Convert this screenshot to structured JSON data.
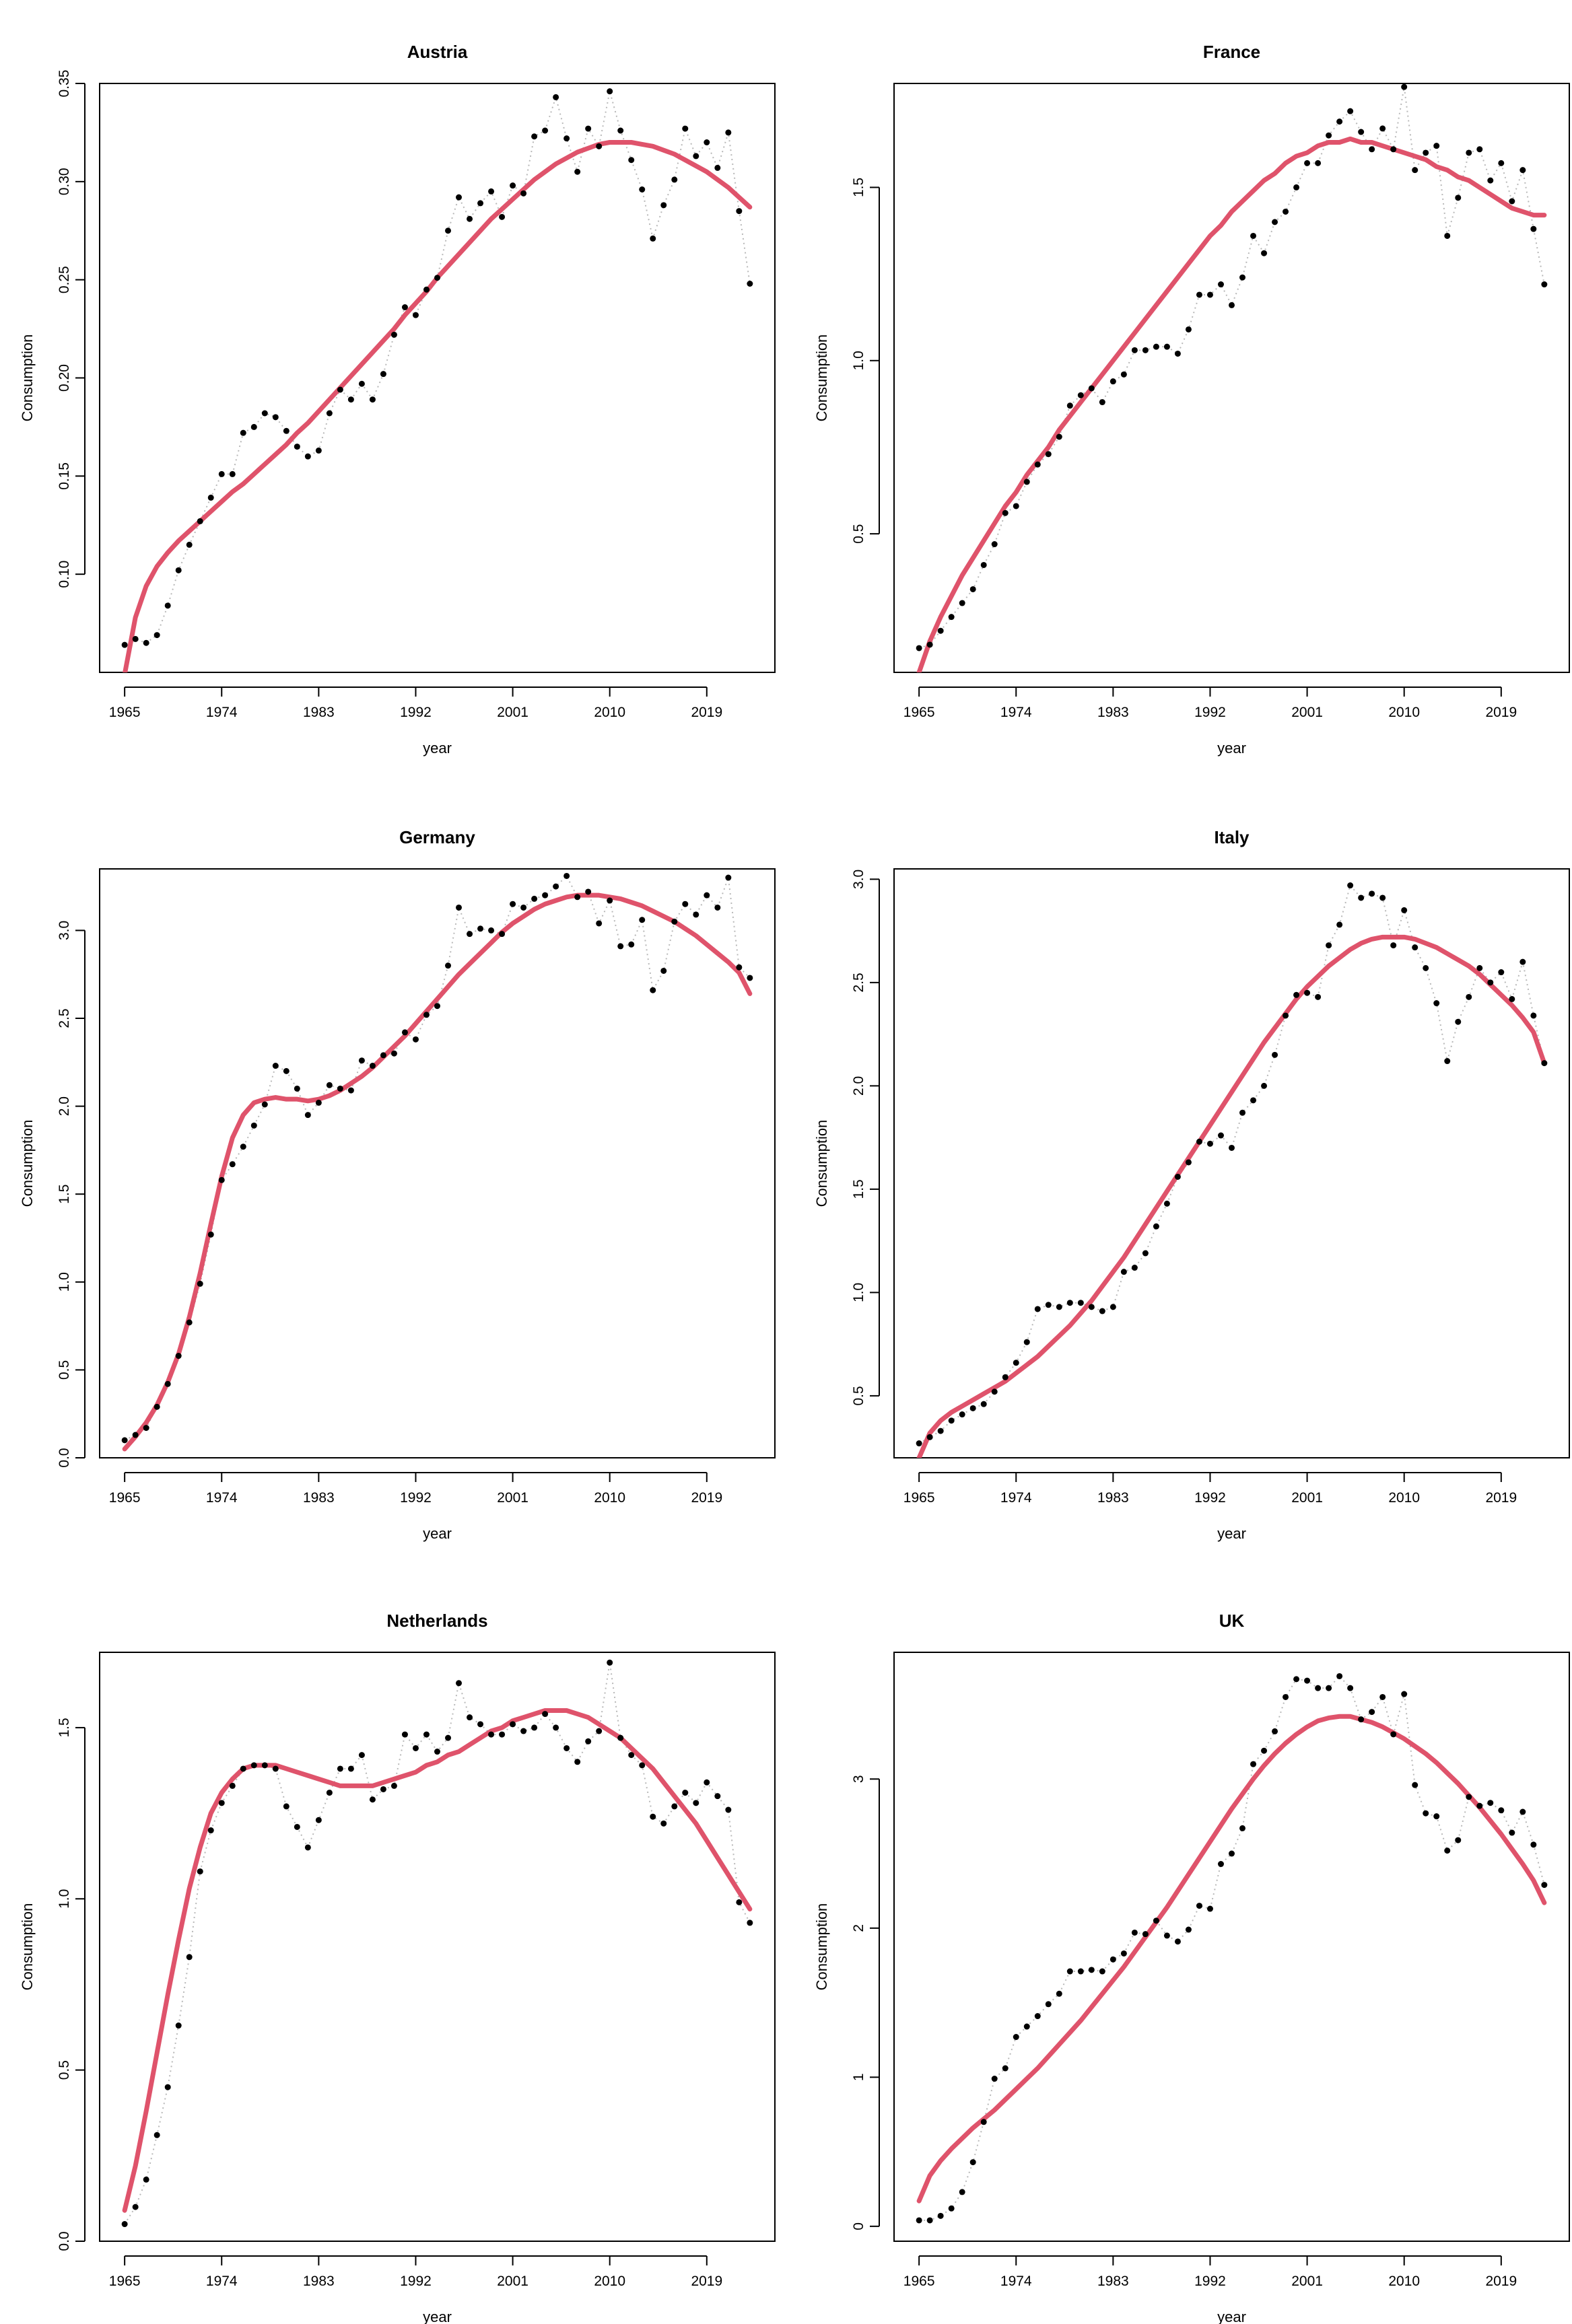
{
  "figure": {
    "colors": {
      "points": "#000000",
      "observed_line": "#b8b8b8",
      "trend": "#DF536B",
      "frame": "#000000"
    }
  },
  "chart_data": [
    {
      "type": "scatter",
      "title": "Austria",
      "xlabel": "year",
      "ylabel": "Consumption",
      "xlim": [
        1965,
        2023
      ],
      "ylim": [
        0.05,
        0.35
      ],
      "x_ticks": [
        1965,
        1974,
        1983,
        1992,
        2001,
        2010,
        2019
      ],
      "y_ticks": [
        0.1,
        0.15,
        0.2,
        0.25,
        0.3,
        0.35
      ],
      "y_tick_labels": [
        "0.10",
        "0.15",
        "0.20",
        "0.25",
        "0.30",
        "0.35"
      ],
      "series": [
        {
          "name": "observed",
          "x_start": 1965,
          "values": [
            0.064,
            0.067,
            0.065,
            0.069,
            0.084,
            0.102,
            0.115,
            0.127,
            0.139,
            0.151,
            0.151,
            0.172,
            0.175,
            0.182,
            0.18,
            0.173,
            0.165,
            0.16,
            0.163,
            0.182,
            0.194,
            0.189,
            0.197,
            0.189,
            0.202,
            0.222,
            0.236,
            0.232,
            0.245,
            0.251,
            0.275,
            0.292,
            0.281,
            0.289,
            0.295,
            0.282,
            0.298,
            0.294,
            0.323,
            0.326,
            0.343,
            0.322,
            0.305,
            0.327,
            0.318,
            0.346,
            0.326,
            0.311,
            0.296,
            0.271,
            0.288,
            0.301,
            0.327,
            0.313,
            0.32,
            0.307,
            0.325,
            0.285,
            0.248
          ]
        },
        {
          "name": "trend",
          "x_start": 1965,
          "values": [
            0.049,
            0.078,
            0.094,
            0.104,
            0.111,
            0.117,
            0.122,
            0.127,
            0.132,
            0.137,
            0.142,
            0.146,
            0.151,
            0.156,
            0.161,
            0.166,
            0.172,
            0.177,
            0.183,
            0.189,
            0.195,
            0.201,
            0.207,
            0.213,
            0.219,
            0.225,
            0.232,
            0.238,
            0.244,
            0.251,
            0.257,
            0.263,
            0.269,
            0.275,
            0.281,
            0.286,
            0.291,
            0.296,
            0.301,
            0.305,
            0.309,
            0.312,
            0.315,
            0.317,
            0.319,
            0.32,
            0.32,
            0.32,
            0.319,
            0.318,
            0.316,
            0.314,
            0.311,
            0.308,
            0.305,
            0.301,
            0.297,
            0.292,
            0.287
          ]
        }
      ]
    },
    {
      "type": "scatter",
      "title": "France",
      "xlabel": "year",
      "ylabel": "Consumption",
      "xlim": [
        1965,
        2023
      ],
      "ylim": [
        0.1,
        1.8
      ],
      "x_ticks": [
        1965,
        1974,
        1983,
        1992,
        2001,
        2010,
        2019
      ],
      "y_ticks": [
        0.5,
        1.0,
        1.5
      ],
      "y_tick_labels": [
        "0.5",
        "1.0",
        "1.5"
      ],
      "series": [
        {
          "name": "observed",
          "x_start": 1965,
          "values": [
            0.17,
            0.18,
            0.22,
            0.26,
            0.3,
            0.34,
            0.41,
            0.47,
            0.56,
            0.58,
            0.65,
            0.7,
            0.73,
            0.78,
            0.87,
            0.9,
            0.92,
            0.88,
            0.94,
            0.96,
            1.03,
            1.03,
            1.04,
            1.04,
            1.02,
            1.09,
            1.19,
            1.19,
            1.22,
            1.16,
            1.24,
            1.36,
            1.31,
            1.4,
            1.43,
            1.5,
            1.57,
            1.57,
            1.65,
            1.69,
            1.72,
            1.66,
            1.61,
            1.67,
            1.61,
            1.79,
            1.55,
            1.6,
            1.62,
            1.36,
            1.47,
            1.6,
            1.61,
            1.52,
            1.57,
            1.46,
            1.55,
            1.38,
            1.22
          ]
        },
        {
          "name": "trend",
          "x_start": 1965,
          "values": [
            0.1,
            0.19,
            0.26,
            0.32,
            0.38,
            0.43,
            0.48,
            0.53,
            0.58,
            0.62,
            0.67,
            0.71,
            0.75,
            0.8,
            0.84,
            0.88,
            0.92,
            0.96,
            1.0,
            1.04,
            1.08,
            1.12,
            1.16,
            1.2,
            1.24,
            1.28,
            1.32,
            1.36,
            1.39,
            1.43,
            1.46,
            1.49,
            1.52,
            1.54,
            1.57,
            1.59,
            1.6,
            1.62,
            1.63,
            1.63,
            1.64,
            1.63,
            1.63,
            1.62,
            1.61,
            1.6,
            1.59,
            1.58,
            1.56,
            1.55,
            1.53,
            1.52,
            1.5,
            1.48,
            1.46,
            1.44,
            1.43,
            1.42,
            1.42
          ]
        }
      ]
    },
    {
      "type": "scatter",
      "title": "Germany",
      "xlabel": "year",
      "ylabel": "Consumption",
      "xlim": [
        1965,
        2023
      ],
      "ylim": [
        0,
        3.35
      ],
      "x_ticks": [
        1965,
        1974,
        1983,
        1992,
        2001,
        2010,
        2019
      ],
      "y_ticks": [
        0.0,
        0.5,
        1.0,
        1.5,
        2.0,
        2.5,
        3.0
      ],
      "y_tick_labels": [
        "0.0",
        "0.5",
        "1.0",
        "1.5",
        "2.0",
        "2.5",
        "3.0"
      ],
      "series": [
        {
          "name": "observed",
          "x_start": 1965,
          "values": [
            0.1,
            0.13,
            0.17,
            0.29,
            0.42,
            0.58,
            0.77,
            0.99,
            1.27,
            1.58,
            1.67,
            1.77,
            1.89,
            2.01,
            2.23,
            2.2,
            2.1,
            1.95,
            2.02,
            2.12,
            2.1,
            2.09,
            2.26,
            2.23,
            2.29,
            2.3,
            2.42,
            2.38,
            2.52,
            2.57,
            2.8,
            3.13,
            2.98,
            3.01,
            3.0,
            2.98,
            3.15,
            3.13,
            3.18,
            3.2,
            3.25,
            3.31,
            3.19,
            3.22,
            3.04,
            3.17,
            2.91,
            2.92,
            3.06,
            2.66,
            2.77,
            3.05,
            3.15,
            3.09,
            3.2,
            3.13,
            3.3,
            2.79,
            2.73
          ]
        },
        {
          "name": "trend",
          "x_start": 1965,
          "values": [
            0.05,
            0.12,
            0.2,
            0.3,
            0.43,
            0.59,
            0.8,
            1.05,
            1.33,
            1.6,
            1.82,
            1.95,
            2.02,
            2.04,
            2.05,
            2.04,
            2.04,
            2.03,
            2.04,
            2.06,
            2.09,
            2.13,
            2.17,
            2.22,
            2.28,
            2.34,
            2.4,
            2.47,
            2.54,
            2.61,
            2.68,
            2.75,
            2.81,
            2.87,
            2.93,
            2.99,
            3.04,
            3.08,
            3.12,
            3.15,
            3.17,
            3.19,
            3.2,
            3.2,
            3.2,
            3.19,
            3.18,
            3.16,
            3.14,
            3.11,
            3.08,
            3.05,
            3.01,
            2.97,
            2.92,
            2.87,
            2.82,
            2.76,
            2.64
          ]
        }
      ]
    },
    {
      "type": "scatter",
      "title": "Italy",
      "xlabel": "year",
      "ylabel": "Consumption",
      "xlim": [
        1965,
        2023
      ],
      "ylim": [
        0.2,
        3.05
      ],
      "x_ticks": [
        1965,
        1974,
        1983,
        1992,
        2001,
        2010,
        2019
      ],
      "y_ticks": [
        0.5,
        1.0,
        1.5,
        2.0,
        2.5,
        3.0
      ],
      "y_tick_labels": [
        "0.5",
        "1.0",
        "1.5",
        "2.0",
        "2.5",
        "3.0"
      ],
      "series": [
        {
          "name": "observed",
          "x_start": 1965,
          "values": [
            0.27,
            0.3,
            0.33,
            0.38,
            0.41,
            0.44,
            0.46,
            0.52,
            0.59,
            0.66,
            0.76,
            0.92,
            0.94,
            0.93,
            0.95,
            0.95,
            0.93,
            0.91,
            0.93,
            1.1,
            1.12,
            1.19,
            1.32,
            1.43,
            1.56,
            1.63,
            1.73,
            1.72,
            1.76,
            1.7,
            1.87,
            1.93,
            2.0,
            2.15,
            2.34,
            2.44,
            2.45,
            2.43,
            2.68,
            2.78,
            2.97,
            2.91,
            2.93,
            2.91,
            2.68,
            2.85,
            2.67,
            2.57,
            2.4,
            2.12,
            2.31,
            2.43,
            2.57,
            2.5,
            2.55,
            2.42,
            2.6,
            2.34,
            2.11
          ]
        },
        {
          "name": "trend",
          "x_start": 1965,
          "values": [
            0.2,
            0.32,
            0.38,
            0.42,
            0.45,
            0.48,
            0.51,
            0.54,
            0.57,
            0.61,
            0.65,
            0.69,
            0.74,
            0.79,
            0.84,
            0.9,
            0.96,
            1.03,
            1.1,
            1.17,
            1.25,
            1.33,
            1.41,
            1.49,
            1.57,
            1.65,
            1.73,
            1.81,
            1.89,
            1.97,
            2.05,
            2.13,
            2.21,
            2.28,
            2.35,
            2.42,
            2.48,
            2.53,
            2.58,
            2.62,
            2.66,
            2.69,
            2.71,
            2.72,
            2.72,
            2.72,
            2.71,
            2.69,
            2.67,
            2.64,
            2.61,
            2.58,
            2.54,
            2.49,
            2.44,
            2.39,
            2.33,
            2.26,
            2.11
          ]
        }
      ]
    },
    {
      "type": "scatter",
      "title": "Netherlands",
      "xlabel": "year",
      "ylabel": "Consumption",
      "xlim": [
        1965,
        2023
      ],
      "ylim": [
        0,
        1.72
      ],
      "x_ticks": [
        1965,
        1974,
        1983,
        1992,
        2001,
        2010,
        2019
      ],
      "y_ticks": [
        0.0,
        0.5,
        1.0,
        1.5
      ],
      "y_tick_labels": [
        "0.0",
        "0.5",
        "1.0",
        "1.5"
      ],
      "series": [
        {
          "name": "observed",
          "x_start": 1965,
          "values": [
            0.05,
            0.1,
            0.18,
            0.31,
            0.45,
            0.63,
            0.83,
            1.08,
            1.2,
            1.28,
            1.33,
            1.38,
            1.39,
            1.39,
            1.38,
            1.27,
            1.21,
            1.15,
            1.23,
            1.31,
            1.38,
            1.38,
            1.42,
            1.29,
            1.32,
            1.33,
            1.48,
            1.44,
            1.48,
            1.43,
            1.47,
            1.63,
            1.53,
            1.51,
            1.48,
            1.48,
            1.51,
            1.49,
            1.5,
            1.54,
            1.5,
            1.44,
            1.4,
            1.46,
            1.49,
            1.69,
            1.47,
            1.42,
            1.39,
            1.24,
            1.22,
            1.27,
            1.31,
            1.28,
            1.34,
            1.3,
            1.26,
            0.99,
            0.93
          ]
        },
        {
          "name": "trend",
          "x_start": 1965,
          "values": [
            0.09,
            0.22,
            0.38,
            0.55,
            0.72,
            0.88,
            1.03,
            1.15,
            1.25,
            1.31,
            1.35,
            1.38,
            1.39,
            1.39,
            1.39,
            1.38,
            1.37,
            1.36,
            1.35,
            1.34,
            1.33,
            1.33,
            1.33,
            1.33,
            1.34,
            1.35,
            1.36,
            1.37,
            1.39,
            1.4,
            1.42,
            1.43,
            1.45,
            1.47,
            1.49,
            1.5,
            1.52,
            1.53,
            1.54,
            1.55,
            1.55,
            1.55,
            1.54,
            1.53,
            1.51,
            1.49,
            1.47,
            1.44,
            1.41,
            1.38,
            1.34,
            1.3,
            1.26,
            1.22,
            1.17,
            1.12,
            1.07,
            1.02,
            0.97
          ]
        }
      ]
    },
    {
      "type": "scatter",
      "title": "UK",
      "xlabel": "year",
      "ylabel": "Consumption",
      "xlim": [
        1965,
        2023
      ],
      "ylim": [
        -0.1,
        3.85
      ],
      "x_ticks": [
        1965,
        1974,
        1983,
        1992,
        2001,
        2010,
        2019
      ],
      "y_ticks": [
        0,
        1,
        2,
        3
      ],
      "y_tick_labels": [
        "0",
        "1",
        "2",
        "3"
      ],
      "series": [
        {
          "name": "observed",
          "x_start": 1965,
          "values": [
            0.04,
            0.04,
            0.07,
            0.12,
            0.23,
            0.43,
            0.7,
            0.99,
            1.06,
            1.27,
            1.34,
            1.41,
            1.49,
            1.56,
            1.71,
            1.71,
            1.72,
            1.71,
            1.79,
            1.83,
            1.97,
            1.96,
            2.05,
            1.95,
            1.91,
            1.99,
            2.15,
            2.13,
            2.43,
            2.5,
            2.67,
            3.1,
            3.19,
            3.32,
            3.55,
            3.67,
            3.66,
            3.61,
            3.61,
            3.69,
            3.61,
            3.4,
            3.45,
            3.55,
            3.3,
            3.57,
            2.96,
            2.77,
            2.75,
            2.52,
            2.59,
            2.88,
            2.82,
            2.84,
            2.79,
            2.64,
            2.78,
            2.56,
            2.29
          ]
        },
        {
          "name": "trend",
          "x_start": 1965,
          "values": [
            0.17,
            0.34,
            0.44,
            0.52,
            0.59,
            0.66,
            0.72,
            0.78,
            0.85,
            0.92,
            0.99,
            1.06,
            1.14,
            1.22,
            1.3,
            1.38,
            1.47,
            1.56,
            1.65,
            1.74,
            1.84,
            1.94,
            2.04,
            2.14,
            2.25,
            2.36,
            2.47,
            2.58,
            2.69,
            2.8,
            2.9,
            3.0,
            3.09,
            3.17,
            3.24,
            3.3,
            3.35,
            3.39,
            3.41,
            3.42,
            3.42,
            3.4,
            3.38,
            3.35,
            3.31,
            3.27,
            3.22,
            3.17,
            3.11,
            3.04,
            2.97,
            2.89,
            2.81,
            2.72,
            2.63,
            2.53,
            2.43,
            2.32,
            2.17
          ]
        }
      ]
    }
  ]
}
